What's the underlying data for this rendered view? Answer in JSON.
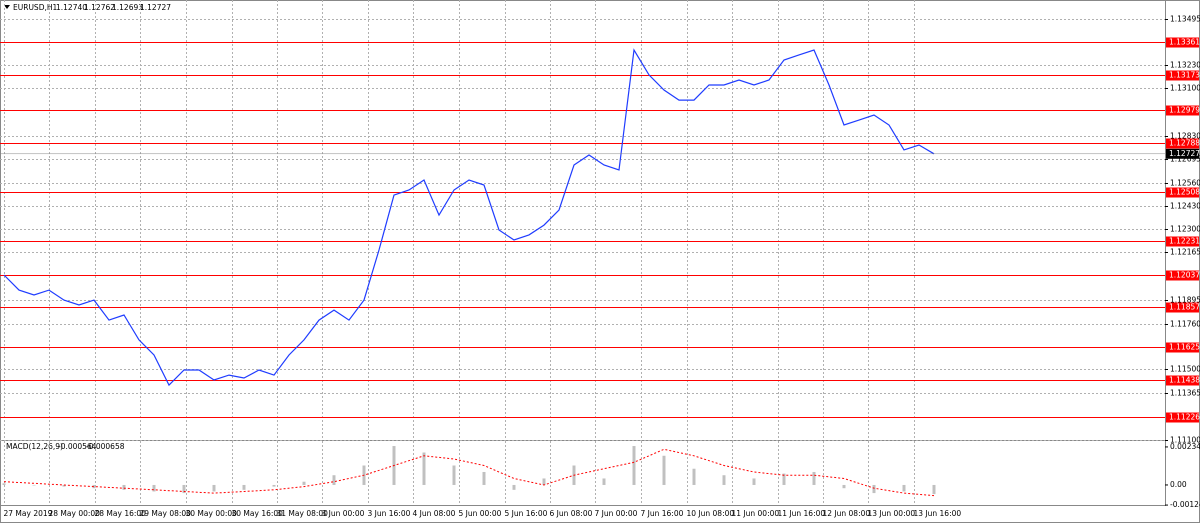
{
  "header": {
    "symbol": "EURUSD,H1",
    "open": "1.12740",
    "high": "1.12762",
    "low": "1.12693",
    "close": "1.12727"
  },
  "chart_data": [
    {
      "type": "line",
      "color": "#1f3cff",
      "grid": true,
      "xlim": [
        0,
        77.4
      ],
      "ylim": [
        1.111,
        1.1358
      ],
      "xticks": [
        {
          "value": 0,
          "label": "27 May 2019"
        },
        {
          "value": 3.03,
          "label": "28 May 00:00"
        },
        {
          "value": 6.07,
          "label": "28 May 16:00"
        },
        {
          "value": 9.1,
          "label": "29 May 08:00"
        },
        {
          "value": 12.13,
          "label": "30 May 00:00"
        },
        {
          "value": 15.17,
          "label": "30 May 16:00"
        },
        {
          "value": 18.2,
          "label": "31 May 08:00"
        },
        {
          "value": 21.23,
          "label": "3 Jun 00:00"
        },
        {
          "value": 24.27,
          "label": "3 Jun 16:00"
        },
        {
          "value": 27.3,
          "label": "4 Jun 08:00"
        },
        {
          "value": 30.33,
          "label": "5 Jun 00:00"
        },
        {
          "value": 33.37,
          "label": "5 Jun 16:00"
        },
        {
          "value": 36.4,
          "label": "6 Jun 08:00"
        },
        {
          "value": 39.43,
          "label": "7 Jun 00:00"
        },
        {
          "value": 42.47,
          "label": "7 Jun 16:00"
        },
        {
          "value": 45.5,
          "label": "10 Jun 08:00"
        },
        {
          "value": 48.53,
          "label": "11 Jun 00:00"
        },
        {
          "value": 51.57,
          "label": "11 Jun 16:00"
        },
        {
          "value": 54.6,
          "label": "12 Jun 08:00"
        },
        {
          "value": 57.63,
          "label": "13 Jun 00:00"
        },
        {
          "value": 60.67,
          "label": "13 Jun 16:00"
        }
      ],
      "yticks": [
        {
          "value": 1.13495,
          "label": "1.13495"
        },
        {
          "value": 1.1323,
          "label": "1.13230"
        },
        {
          "value": 1.131,
          "label": "1.13100"
        },
        {
          "value": 1.1283,
          "label": "1.12830"
        },
        {
          "value": 1.12695,
          "label": "1.12695"
        },
        {
          "value": 1.1256,
          "label": "1.12560"
        },
        {
          "value": 1.1243,
          "label": "1.12430"
        },
        {
          "value": 1.123,
          "label": "1.12300"
        },
        {
          "value": 1.12165,
          "label": "1.12165"
        },
        {
          "value": 1.11895,
          "label": "1.11895"
        },
        {
          "value": 1.1176,
          "label": "1.11760"
        },
        {
          "value": 1.115,
          "label": "1.11500"
        },
        {
          "value": 1.11365,
          "label": "1.11365"
        },
        {
          "value": 1.111,
          "label": "1.11100"
        }
      ],
      "levels": {
        "color": "#ff0000",
        "values": [
          1.13361,
          1.13173,
          1.12979,
          1.12788,
          1.12508,
          1.12231,
          1.12037,
          1.11857,
          1.11625,
          1.11438,
          1.11226
        ]
      },
      "current": 1.12727,
      "values": [
        1.12037,
        1.11951,
        1.11923,
        1.11951,
        1.11894,
        1.11866,
        1.11894,
        1.1178,
        1.11809,
        1.11667,
        1.11581,
        1.1141,
        1.11496,
        1.11496,
        1.11439,
        1.11467,
        1.1145,
        1.11496,
        1.11467,
        1.11581,
        1.11667,
        1.1178,
        1.11837,
        1.1178,
        1.11894,
        1.12179,
        1.12492,
        1.12521,
        1.12578,
        1.12378,
        1.12521,
        1.12578,
        1.12549,
        1.12293,
        1.12236,
        1.12265,
        1.12321,
        1.12407,
        1.12663,
        1.1272,
        1.12663,
        1.12635,
        1.13318,
        1.13176,
        1.1309,
        1.13033,
        1.13033,
        1.13119,
        1.13119,
        1.13147,
        1.13119,
        1.13147,
        1.13261,
        1.1329,
        1.13318,
        1.13119,
        1.12891,
        1.12919,
        1.12948,
        1.12891,
        1.12749,
        1.12777,
        1.12727
      ]
    },
    {
      "type": "bar",
      "title": "MACD(12,26,9)",
      "value_text": [
        "-0.000564",
        "-0.000658"
      ],
      "xlim": [
        0,
        77.4
      ],
      "ylim": [
        -0.00142,
        0.00271
      ],
      "yticks": [
        0.002344,
        {
          "value": 0,
          "label": "0.00"
        },
        -0.00124
      ],
      "x": [
        0,
        2,
        4,
        6,
        8,
        10,
        12,
        14,
        16,
        18,
        20,
        22,
        24,
        26,
        28,
        30,
        32,
        34,
        36,
        38,
        40,
        42,
        44,
        46,
        48,
        50,
        52,
        54,
        56,
        58,
        60,
        62
      ],
      "series": [
        {
          "color": "#c0c0c0",
          "values": [
            0.0001,
            0,
            -0.0001,
            -0.0002,
            -0.0003,
            -0.0004,
            -0.0005,
            -0.0004,
            -0.0003,
            -0.0001,
            0.0002,
            0.0006,
            0.0012,
            0.0024,
            0.002,
            0.0012,
            0.0008,
            -0.0003,
            0.0004,
            0.0012,
            0.0004,
            0.0024,
            0.0018,
            0.001,
            0.0006,
            0.0004,
            0.0007,
            0.0008,
            -0.0002,
            -0.0005,
            -0.0004,
            -0.000564
          ]
        },
        {
          "color": "#ff0000",
          "values": [
            0.0002,
            0.0001,
            0,
            -0.0001,
            -0.0002,
            -0.0003,
            -0.0004,
            -0.0005,
            -0.0004,
            -0.0003,
            -0.0001,
            0.0002,
            0.0006,
            0.0012,
            0.0018,
            0.0016,
            0.0012,
            0.0004,
            0,
            0.0006,
            0.001,
            0.0014,
            0.0022,
            0.0018,
            0.0012,
            0.0008,
            0.0006,
            0.0006,
            0.0004,
            -0.0002,
            -0.0005,
            -0.000658
          ]
        }
      ]
    }
  ]
}
